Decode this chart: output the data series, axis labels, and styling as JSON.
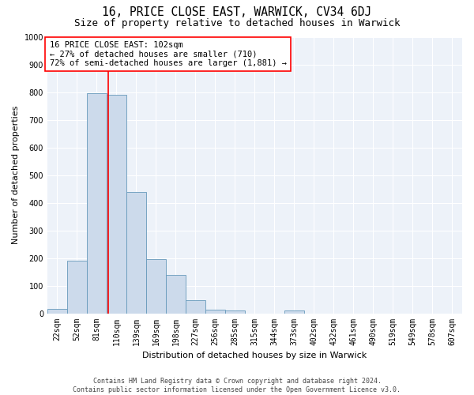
{
  "title": "16, PRICE CLOSE EAST, WARWICK, CV34 6DJ",
  "subtitle": "Size of property relative to detached houses in Warwick",
  "xlabel": "Distribution of detached houses by size in Warwick",
  "ylabel": "Number of detached properties",
  "bar_color": "#ccdaeb",
  "bar_edge_color": "#6699bb",
  "background_color": "#edf2f9",
  "categories": [
    "22sqm",
    "52sqm",
    "81sqm",
    "110sqm",
    "139sqm",
    "169sqm",
    "198sqm",
    "227sqm",
    "256sqm",
    "285sqm",
    "315sqm",
    "344sqm",
    "373sqm",
    "402sqm",
    "432sqm",
    "461sqm",
    "490sqm",
    "519sqm",
    "549sqm",
    "578sqm",
    "607sqm"
  ],
  "values": [
    15,
    190,
    795,
    790,
    440,
    195,
    140,
    47,
    13,
    10,
    0,
    0,
    10,
    0,
    0,
    0,
    0,
    0,
    0,
    0,
    0
  ],
  "ylim": [
    0,
    1000
  ],
  "yticks": [
    0,
    100,
    200,
    300,
    400,
    500,
    600,
    700,
    800,
    900,
    1000
  ],
  "property_label": "16 PRICE CLOSE EAST: 102sqm",
  "arrow_left_text": "← 27% of detached houses are smaller (710)",
  "arrow_right_text": "72% of semi-detached houses are larger (1,881) →",
  "red_line_x": 2.58,
  "footer_line1": "Contains HM Land Registry data © Crown copyright and database right 2024.",
  "footer_line2": "Contains public sector information licensed under the Open Government Licence v3.0.",
  "title_fontsize": 10.5,
  "subtitle_fontsize": 9,
  "axis_label_fontsize": 8,
  "tick_fontsize": 7,
  "annotation_fontsize": 7.5,
  "footer_fontsize": 6
}
